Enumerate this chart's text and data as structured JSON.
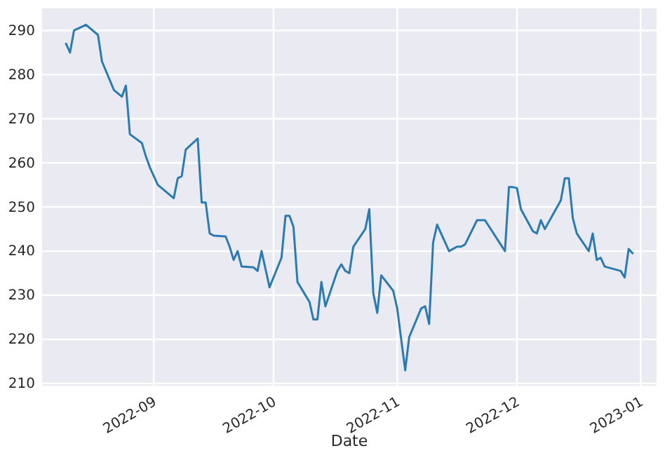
{
  "chart_data": {
    "type": "line",
    "xlabel": "Date",
    "x": [
      "2022-08-10",
      "2022-08-11",
      "2022-08-12",
      "2022-08-15",
      "2022-08-18",
      "2022-08-19",
      "2022-08-22",
      "2022-08-24",
      "2022-08-25",
      "2022-08-26",
      "2022-08-29",
      "2022-08-30",
      "2022-08-31",
      "2022-09-02",
      "2022-09-06",
      "2022-09-07",
      "2022-09-08",
      "2022-09-09",
      "2022-09-12",
      "2022-09-13",
      "2022-09-14",
      "2022-09-15",
      "2022-09-16",
      "2022-09-19",
      "2022-09-20",
      "2022-09-21",
      "2022-09-22",
      "2022-09-23",
      "2022-09-26",
      "2022-09-27",
      "2022-09-28",
      "2022-09-30",
      "2022-10-03",
      "2022-10-04",
      "2022-10-05",
      "2022-10-06",
      "2022-10-07",
      "2022-10-10",
      "2022-10-11",
      "2022-10-12",
      "2022-10-13",
      "2022-10-14",
      "2022-10-17",
      "2022-10-18",
      "2022-10-19",
      "2022-10-20",
      "2022-10-21",
      "2022-10-24",
      "2022-10-25",
      "2022-10-26",
      "2022-10-27",
      "2022-10-28",
      "2022-10-31",
      "2022-11-01",
      "2022-11-03",
      "2022-11-04",
      "2022-11-07",
      "2022-11-08",
      "2022-11-09",
      "2022-11-10",
      "2022-11-11",
      "2022-11-14",
      "2022-11-15",
      "2022-11-16",
      "2022-11-17",
      "2022-11-18",
      "2022-11-21",
      "2022-11-23",
      "2022-11-28",
      "2022-11-29",
      "2022-11-30",
      "2022-12-01",
      "2022-12-02",
      "2022-12-05",
      "2022-12-06",
      "2022-12-07",
      "2022-12-08",
      "2022-12-12",
      "2022-12-13",
      "2022-12-14",
      "2022-12-15",
      "2022-12-16",
      "2022-12-19",
      "2022-12-20",
      "2022-12-21",
      "2022-12-22",
      "2022-12-23",
      "2022-12-27",
      "2022-12-28",
      "2022-12-29",
      "2022-12-30"
    ],
    "series": [
      {
        "color": "#2b7bb0",
        "values": [
          287,
          285,
          290,
          291.3,
          289,
          283,
          276.5,
          275,
          277.5,
          266.5,
          264.5,
          261.5,
          259,
          255,
          252,
          256.5,
          257,
          263,
          265.5,
          251,
          251,
          244,
          243.5,
          243.3,
          241,
          238,
          240,
          236.5,
          236.3,
          235.5,
          240,
          231.8,
          238.5,
          248,
          248,
          245.5,
          233,
          228.5,
          224.5,
          224.5,
          233,
          227.5,
          235.5,
          237,
          235.5,
          235,
          241,
          245,
          249.5,
          230.5,
          226,
          234.5,
          231,
          227,
          213,
          220.5,
          227,
          227.5,
          223.5,
          242,
          246,
          240,
          240.5,
          241,
          241,
          241.5,
          247,
          247,
          240,
          254.5,
          254.5,
          254.3,
          249.5,
          244.5,
          244,
          247,
          245,
          251.5,
          256.5,
          256.5,
          247.5,
          244,
          240,
          244,
          238,
          238.5,
          236.5,
          235.5,
          234,
          240.5,
          239.5
        ]
      }
    ],
    "xlim": [
      "2022-08-04",
      "2023-01-05"
    ],
    "xticks": [
      {
        "value": "2022-09-01",
        "label": "2022-09"
      },
      {
        "value": "2022-10-01",
        "label": "2022-10"
      },
      {
        "value": "2022-11-01",
        "label": "2022-11"
      },
      {
        "value": "2022-12-01",
        "label": "2022-12"
      },
      {
        "value": "2023-01-01",
        "label": "2023-01"
      }
    ],
    "ylim": [
      209.5,
      295
    ],
    "yticks": [
      210,
      220,
      230,
      240,
      250,
      260,
      270,
      280,
      290
    ],
    "grid": true,
    "line_style": "solid",
    "marker": "none"
  }
}
